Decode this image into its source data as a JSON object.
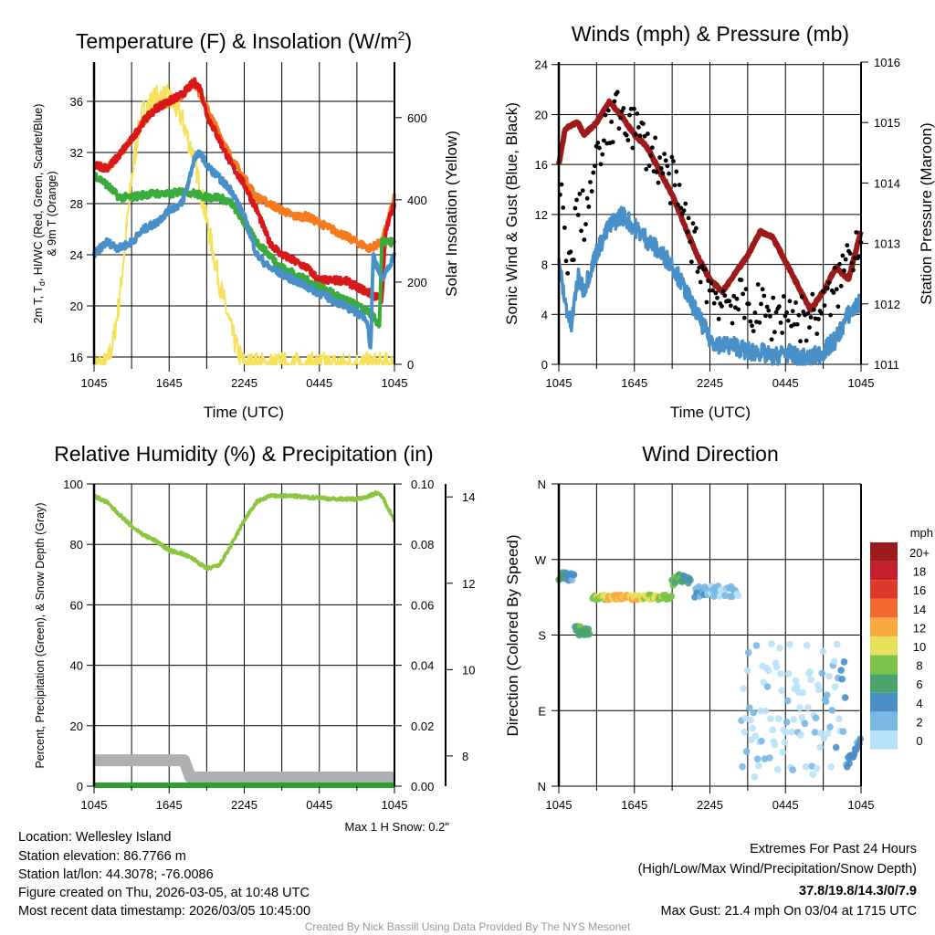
{
  "colors": {
    "temp": "#d7191c",
    "temp9m": "#f47b20",
    "dewpoint": "#3bab3b",
    "windchill": "#4a90c8",
    "insolation": "#f5e15a",
    "pressure": "#9e1a1a",
    "wind": "#4a90c8",
    "gust": "#000000",
    "rh": "#8cc63f",
    "precip": "#2ca02c",
    "snow": "#b0b0b0",
    "highlight": "#d42020"
  },
  "x_ticks": [
    "1045",
    "1645",
    "2245",
    "0445",
    "1045"
  ],
  "chart_data": [
    {
      "type": "line",
      "title_a": "Temperature (F) & Insolation (W/m",
      "title_sup": "2",
      "title_b": ")",
      "xlabel": "Time (UTC)",
      "ylabel_a": "2m T, T",
      "ylabel_sub": "d",
      "ylabel_b": ", HI/WC (Red, Green, Scarlet/Blue)",
      "ylabel2": "& 9m T (Orange)",
      "y2label": "Solar Insolation (Yellow)",
      "ylim": [
        15.43,
        39.07
      ],
      "yticks": [
        16,
        20,
        24,
        28,
        32,
        36
      ],
      "y2lim": [
        0,
        735
      ],
      "y2ticks": [
        0,
        200,
        400,
        600
      ],
      "series": [
        {
          "name": "2m T",
          "color_key": "temp",
          "axis": "left",
          "points": [
            [
              0,
              31
            ],
            [
              1,
              30.8
            ],
            [
              1.5,
              31.2
            ],
            [
              3,
              33
            ],
            [
              4,
              34.5
            ],
            [
              5,
              35.5
            ],
            [
              6,
              36
            ],
            [
              7,
              36.5
            ],
            [
              8,
              37.5
            ],
            [
              8.5,
              37
            ],
            [
              9,
              35
            ],
            [
              10,
              33
            ],
            [
              11,
              31
            ],
            [
              12,
              29.5
            ],
            [
              13,
              27.5
            ],
            [
              14,
              25
            ],
            [
              15,
              24
            ],
            [
              16,
              23.5
            ],
            [
              17,
              23
            ],
            [
              18,
              22
            ],
            [
              19,
              22
            ],
            [
              20,
              22
            ],
            [
              21,
              21.5
            ],
            [
              22,
              21
            ],
            [
              23,
              20.5
            ],
            [
              23.3,
              26
            ],
            [
              24,
              28
            ]
          ]
        },
        {
          "name": "9m T",
          "color_key": "temp9m",
          "axis": "left",
          "points": [
            [
              0,
              31
            ],
            [
              1,
              30.8
            ],
            [
              1.5,
              31.2
            ],
            [
              3,
              33
            ],
            [
              4,
              34.5
            ],
            [
              5,
              35.5
            ],
            [
              6,
              36
            ],
            [
              7,
              36.5
            ],
            [
              8,
              37.5
            ],
            [
              9,
              35.5
            ],
            [
              10,
              33.5
            ],
            [
              11,
              31.5
            ],
            [
              12,
              30
            ],
            [
              13,
              28.5
            ],
            [
              14,
              28
            ],
            [
              15,
              27.5
            ],
            [
              16,
              27
            ],
            [
              17,
              27
            ],
            [
              18,
              26.5
            ],
            [
              19,
              26
            ],
            [
              20,
              25.5
            ],
            [
              21,
              25
            ],
            [
              22,
              24.5
            ],
            [
              23,
              25
            ],
            [
              24,
              28.5
            ]
          ]
        },
        {
          "name": "Td",
          "color_key": "dewpoint",
          "axis": "left",
          "points": [
            [
              0,
              30.3
            ],
            [
              1,
              29.5
            ],
            [
              2,
              28.5
            ],
            [
              3,
              28.5
            ],
            [
              4,
              28.7
            ],
            [
              5,
              28.8
            ],
            [
              6,
              28.7
            ],
            [
              7,
              29
            ],
            [
              8,
              28.8
            ],
            [
              9,
              28.5
            ],
            [
              10,
              28.5
            ],
            [
              11,
              28
            ],
            [
              12,
              26.5
            ],
            [
              13,
              25
            ],
            [
              14,
              24
            ],
            [
              15,
              23
            ],
            [
              16,
              22.5
            ],
            [
              17,
              22
            ],
            [
              18,
              21.5
            ],
            [
              19,
              21
            ],
            [
              20,
              20.5
            ],
            [
              21,
              20
            ],
            [
              22,
              19.5
            ],
            [
              22.8,
              18.5
            ],
            [
              23,
              25
            ],
            [
              24,
              25
            ]
          ]
        },
        {
          "name": "HI/WC",
          "color_key": "windchill",
          "axis": "left",
          "points": [
            [
              0,
              24
            ],
            [
              1,
              25
            ],
            [
              2,
              24.5
            ],
            [
              3,
              25
            ],
            [
              4,
              26
            ],
            [
              5,
              26.5
            ],
            [
              6,
              27.5
            ],
            [
              7,
              28
            ],
            [
              7.5,
              29.5
            ],
            [
              8,
              31.5
            ],
            [
              8.5,
              32
            ],
            [
              9,
              31
            ],
            [
              10,
              30
            ],
            [
              11,
              29
            ],
            [
              12,
              27
            ],
            [
              13,
              24
            ],
            [
              14,
              23
            ],
            [
              15,
              22.5
            ],
            [
              16,
              22
            ],
            [
              17,
              21.5
            ],
            [
              18,
              21
            ],
            [
              19,
              20.5
            ],
            [
              20,
              20
            ],
            [
              21,
              19.5
            ],
            [
              21.8,
              19
            ],
            [
              22.1,
              16.5
            ],
            [
              22.3,
              24
            ],
            [
              23,
              22
            ],
            [
              23.5,
              23
            ],
            [
              24,
              24
            ]
          ]
        },
        {
          "name": "Insolation",
          "color_key": "insolation",
          "axis": "right",
          "points": [
            [
              0,
              0
            ],
            [
              1,
              0
            ],
            [
              1.5,
              50
            ],
            [
              2,
              150
            ],
            [
              2.5,
              300
            ],
            [
              3,
              450
            ],
            [
              3.5,
              560
            ],
            [
              4,
              620
            ],
            [
              5,
              650
            ],
            [
              6,
              650
            ],
            [
              7,
              600
            ],
            [
              8,
              500
            ],
            [
              9,
              350
            ],
            [
              10,
              200
            ],
            [
              11,
              80
            ],
            [
              11.5,
              30
            ],
            [
              12,
              0
            ],
            [
              24,
              0
            ]
          ]
        }
      ]
    },
    {
      "type": "line",
      "title": "Winds (mph) & Pressure (mb)",
      "xlabel": "Time (UTC)",
      "ylabel": "Sonic Wind & Gust (Blue, Black)",
      "y2label": "Station Pressure (Maroon)",
      "ylim": [
        0,
        24.2
      ],
      "yticks": [
        0,
        4,
        8,
        12,
        16,
        20,
        24
      ],
      "y2lim": [
        1011,
        1016
      ],
      "y2ticks": [
        1011,
        1012,
        1013,
        1014,
        1015,
        1016
      ],
      "series": [
        {
          "name": "Pressure",
          "color_key": "pressure",
          "axis": "right",
          "points": [
            [
              0,
              1014.3
            ],
            [
              0.5,
              1014.9
            ],
            [
              1.5,
              1015
            ],
            [
              2,
              1014.8
            ],
            [
              3,
              1015
            ],
            [
              4,
              1015.35
            ],
            [
              5,
              1015.1
            ],
            [
              6,
              1014.8
            ],
            [
              7,
              1014.6
            ],
            [
              8,
              1014.2
            ],
            [
              9,
              1013.8
            ],
            [
              10,
              1013.3
            ],
            [
              11,
              1012.8
            ],
            [
              12,
              1012.4
            ],
            [
              13,
              1012.2
            ],
            [
              14,
              1012.5
            ],
            [
              15,
              1012.8
            ],
            [
              16,
              1013.2
            ],
            [
              17,
              1013.1
            ],
            [
              18,
              1012.7
            ],
            [
              19,
              1012.3
            ],
            [
              20,
              1011.9
            ],
            [
              21,
              1012.2
            ],
            [
              22,
              1012.6
            ],
            [
              23,
              1012.4
            ],
            [
              24,
              1013.2
            ]
          ]
        },
        {
          "name": "Wind",
          "color_key": "wind",
          "axis": "left",
          "points": [
            [
              0,
              8
            ],
            [
              0.5,
              5
            ],
            [
              1,
              3
            ],
            [
              1.5,
              7
            ],
            [
              2,
              6
            ],
            [
              3,
              9
            ],
            [
              4,
              11
            ],
            [
              5,
              12
            ],
            [
              6,
              11
            ],
            [
              7,
              10
            ],
            [
              8,
              9
            ],
            [
              9,
              8
            ],
            [
              10,
              6
            ],
            [
              11,
              4
            ],
            [
              12,
              2
            ],
            [
              13,
              1.5
            ],
            [
              14,
              1.5
            ],
            [
              15,
              1
            ],
            [
              16,
              1
            ],
            [
              17,
              0.5
            ],
            [
              18,
              1
            ],
            [
              19,
              0.5
            ],
            [
              20,
              0.5
            ],
            [
              21,
              1
            ],
            [
              22,
              2
            ],
            [
              23,
              4
            ],
            [
              24,
              5
            ]
          ]
        }
      ]
    },
    {
      "type": "line",
      "title": "Relative Humidity (%) & Precipitation (in)",
      "ylabel": "Percent, Precipitation (Green), & Snow Depth (Gray)",
      "ylim": [
        0,
        100
      ],
      "yticks": [
        0,
        20,
        40,
        60,
        80,
        100
      ],
      "y2lim": [
        0,
        0.1
      ],
      "y2ticks": [
        "0.00",
        "0.02",
        "0.04",
        "0.06",
        "0.08",
        "0.10"
      ],
      "y3lim": [
        7.3,
        14.3
      ],
      "y3ticks": [
        8,
        10,
        12,
        14
      ],
      "snow_note": "Max 1 H Snow: 0.2\"",
      "series": [
        {
          "name": "RH",
          "color_key": "rh",
          "points": [
            [
              0,
              96
            ],
            [
              1,
              94
            ],
            [
              2,
              90
            ],
            [
              3,
              86
            ],
            [
              4,
              83
            ],
            [
              5,
              81
            ],
            [
              6,
              78
            ],
            [
              7,
              77
            ],
            [
              8,
              75
            ],
            [
              9,
              72
            ],
            [
              10,
              73
            ],
            [
              11,
              80
            ],
            [
              12,
              88
            ],
            [
              13,
              94
            ],
            [
              14,
              96
            ],
            [
              15,
              96
            ],
            [
              16,
              96
            ],
            [
              17,
              95.5
            ],
            [
              18,
              95.5
            ],
            [
              19,
              95
            ],
            [
              20,
              95
            ],
            [
              21,
              95
            ],
            [
              22,
              96
            ],
            [
              22.5,
              97
            ],
            [
              23,
              96
            ],
            [
              24,
              88
            ]
          ]
        },
        {
          "name": "Precip",
          "color_key": "precip",
          "points": [
            [
              0,
              0
            ],
            [
              24,
              0
            ]
          ]
        },
        {
          "name": "Snow depth",
          "color_key": "snow",
          "points": [
            [
              0,
              7.9
            ],
            [
              7.2,
              7.9
            ],
            [
              7.7,
              7.5
            ],
            [
              24,
              7.5
            ]
          ]
        }
      ]
    },
    {
      "type": "scatter",
      "title": "Wind Direction",
      "ylabel": "Direction (Colored By Speed)",
      "yticks": [
        "N",
        "E",
        "S",
        "W",
        "N"
      ],
      "ylim": [
        0,
        360
      ],
      "legend_title": "mph",
      "legend_labels": [
        "20+",
        "18",
        "16",
        "14",
        "12",
        "10",
        "8",
        "6",
        "4",
        "2",
        "0"
      ],
      "legend_colors": [
        "#9b1c1c",
        "#c3202a",
        "#e2372b",
        "#f26a2e",
        "#f9a842",
        "#e8e05a",
        "#7bc24a",
        "#4aa56c",
        "#4a8ec6",
        "#7ab8e4",
        "#b8e2f8"
      ],
      "segments": [
        [
          0,
          1.2,
          250,
          10
        ],
        [
          1.3,
          2.5,
          185,
          12
        ],
        [
          2.7,
          9,
          225,
          6
        ],
        [
          9,
          10.5,
          245,
          14
        ],
        [
          10.8,
          14.3,
          232,
          14
        ],
        [
          14.5,
          24,
          90,
          80
        ]
      ]
    }
  ],
  "footer": {
    "location": "Location: Wellesley Island",
    "elevation": "Station elevation: 86.7766 m",
    "latlon": "Station lat/lon: 44.3078; -76.0086",
    "created": "Figure created on Thu, 2026-03-05, at 10:48 UTC",
    "recent": "Most recent data timestamp: 2026/03/05 10:45:00",
    "extremes_title": "Extremes For Past 24 Hours",
    "extremes_sub": "(High/Low/Max Wind/Precipitation/Snow Depth)",
    "extremes_values": "37.8/19.8/14.3/0/7.9",
    "max_gust": "Max Gust: 21.4 mph On 03/04 at 1715 UTC",
    "credit": "Created By Nick Bassill Using Data Provided By The NYS Mesonet"
  }
}
